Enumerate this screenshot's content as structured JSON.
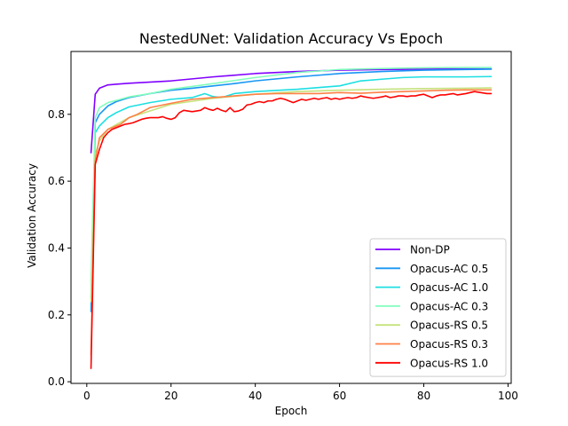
{
  "chart_data": {
    "type": "line",
    "title": "NestedUNet: Validation Accuracy Vs Epoch",
    "xlabel": "Epoch",
    "ylabel": "Validation Accuracy",
    "xlim": [
      -3.75,
      100.75
    ],
    "ylim": [
      -0.005,
      0.988
    ],
    "xticks": [
      0,
      20,
      40,
      60,
      80,
      100
    ],
    "yticks": [
      0.0,
      0.2,
      0.4,
      0.6,
      0.8
    ],
    "xtick_labels": [
      "0",
      "20",
      "40",
      "60",
      "80",
      "100"
    ],
    "ytick_labels": [
      "0.0",
      "0.2",
      "0.4",
      "0.6",
      "0.8"
    ],
    "grid": false,
    "legend_position": "lower-right",
    "series": [
      {
        "name": "Non-DP",
        "color": "#8000ff",
        "x": [
          1,
          2,
          3,
          5,
          10,
          20,
          30,
          40,
          50,
          60,
          70,
          80,
          90,
          96
        ],
        "y": [
          0.685,
          0.86,
          0.878,
          0.888,
          0.893,
          0.9,
          0.912,
          0.922,
          0.928,
          0.932,
          0.934,
          0.935,
          0.936,
          0.936
        ]
      },
      {
        "name": "Opacus-AC 0.5",
        "color": "#1996f3",
        "x": [
          1,
          2,
          3,
          5,
          7,
          10,
          15,
          20,
          25,
          30,
          35,
          40,
          50,
          60,
          70,
          80,
          90,
          96
        ],
        "y": [
          0.21,
          0.775,
          0.8,
          0.825,
          0.838,
          0.85,
          0.862,
          0.872,
          0.878,
          0.885,
          0.892,
          0.9,
          0.912,
          0.922,
          0.928,
          0.932,
          0.934,
          0.935
        ]
      },
      {
        "name": "Opacus-AC 1.0",
        "color": "#1ddfe1",
        "x": [
          1,
          2,
          3,
          5,
          7,
          10,
          15,
          20,
          25,
          28,
          30,
          32,
          35,
          40,
          50,
          60,
          65,
          70,
          75,
          80,
          90,
          96
        ],
        "y": [
          0.25,
          0.745,
          0.765,
          0.79,
          0.805,
          0.822,
          0.835,
          0.845,
          0.85,
          0.862,
          0.853,
          0.85,
          0.862,
          0.868,
          0.875,
          0.885,
          0.9,
          0.905,
          0.91,
          0.912,
          0.912,
          0.913
        ]
      },
      {
        "name": "Opacus-AC 0.3",
        "color": "#82fdbd",
        "x": [
          1,
          2,
          3,
          5,
          8,
          10,
          15,
          20,
          30,
          40,
          50,
          60,
          70,
          80,
          90,
          96
        ],
        "y": [
          0.3,
          0.79,
          0.82,
          0.835,
          0.845,
          0.852,
          0.862,
          0.875,
          0.892,
          0.91,
          0.925,
          0.934,
          0.937,
          0.939,
          0.94,
          0.94
        ]
      },
      {
        "name": "Opacus-RS 0.5",
        "color": "#c5e27c",
        "x": [
          1,
          2,
          3,
          5,
          10,
          15,
          20,
          30,
          40,
          50,
          60,
          70,
          80,
          90,
          96
        ],
        "y": [
          0.24,
          0.68,
          0.72,
          0.755,
          0.79,
          0.81,
          0.83,
          0.848,
          0.86,
          0.868,
          0.872,
          0.875,
          0.877,
          0.878,
          0.879
        ]
      },
      {
        "name": "Opacus-RS 0.3",
        "color": "#ff8046",
        "x": [
          1,
          2,
          3,
          5,
          8,
          10,
          12,
          15,
          20,
          25,
          30,
          35,
          40,
          45,
          50,
          55,
          60,
          65,
          70,
          75,
          80,
          85,
          90,
          96
        ],
        "y": [
          0.08,
          0.66,
          0.73,
          0.755,
          0.77,
          0.79,
          0.8,
          0.82,
          0.833,
          0.845,
          0.85,
          0.855,
          0.86,
          0.862,
          0.862,
          0.862,
          0.865,
          0.863,
          0.866,
          0.868,
          0.87,
          0.872,
          0.873,
          0.873
        ]
      },
      {
        "name": "Opacus-RS 1.0",
        "color": "#ff0000",
        "x": [
          1,
          2,
          3,
          4,
          5,
          6,
          7,
          8,
          9,
          10,
          11,
          12,
          13,
          14,
          15,
          16,
          17,
          18,
          19,
          20,
          21,
          22,
          23,
          24,
          25,
          26,
          27,
          28,
          29,
          30,
          31,
          32,
          33,
          34,
          35,
          36,
          37,
          38,
          39,
          40,
          41,
          42,
          43,
          44,
          45,
          46,
          47,
          48,
          49,
          50,
          51,
          52,
          53,
          54,
          55,
          56,
          57,
          58,
          59,
          60,
          61,
          62,
          63,
          64,
          65,
          66,
          67,
          68,
          69,
          70,
          71,
          72,
          73,
          74,
          75,
          76,
          77,
          78,
          79,
          80,
          81,
          82,
          83,
          84,
          85,
          86,
          87,
          88,
          89,
          90,
          91,
          92,
          93,
          94,
          95,
          96
        ],
        "y": [
          0.04,
          0.65,
          0.695,
          0.73,
          0.745,
          0.755,
          0.76,
          0.765,
          0.77,
          0.772,
          0.775,
          0.78,
          0.785,
          0.788,
          0.79,
          0.79,
          0.79,
          0.793,
          0.788,
          0.785,
          0.79,
          0.805,
          0.812,
          0.81,
          0.808,
          0.81,
          0.812,
          0.82,
          0.815,
          0.812,
          0.818,
          0.812,
          0.808,
          0.82,
          0.808,
          0.81,
          0.815,
          0.828,
          0.83,
          0.835,
          0.838,
          0.835,
          0.84,
          0.84,
          0.845,
          0.848,
          0.845,
          0.84,
          0.835,
          0.84,
          0.845,
          0.842,
          0.845,
          0.848,
          0.845,
          0.848,
          0.85,
          0.845,
          0.848,
          0.845,
          0.848,
          0.85,
          0.848,
          0.85,
          0.855,
          0.852,
          0.85,
          0.848,
          0.85,
          0.852,
          0.855,
          0.85,
          0.852,
          0.855,
          0.855,
          0.853,
          0.855,
          0.855,
          0.858,
          0.86,
          0.855,
          0.85,
          0.855,
          0.858,
          0.858,
          0.86,
          0.862,
          0.858,
          0.86,
          0.862,
          0.865,
          0.868,
          0.866,
          0.864,
          0.862,
          0.862
        ]
      }
    ]
  }
}
